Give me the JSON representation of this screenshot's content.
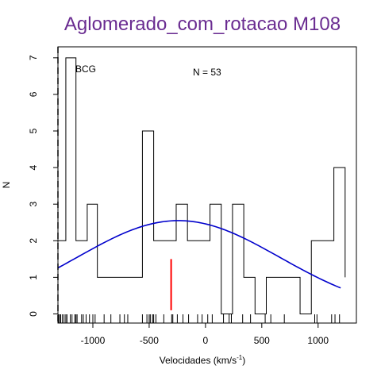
{
  "chart_data": {
    "type": "histogram",
    "title": "Aglomerado_com_rotacao M108",
    "xlabel": "Velocidades  (km/s",
    "xlabel_exponent": "-1",
    "xlabel_suffix": ")",
    "ylabel": "N",
    "xlim": [
      -1310,
      1340
    ],
    "ylim": [
      -0.25,
      7.3
    ],
    "x_ticks": [
      -1000,
      -500,
      0,
      500,
      1000
    ],
    "y_ticks": [
      0,
      1,
      2,
      3,
      4,
      5,
      6,
      7
    ],
    "annotation_n": "N =  53",
    "bcg_label": "BCG",
    "bcg_velocity": -1310,
    "mean_marker": {
      "x": -305,
      "height": 1.5,
      "color": "#ff0000"
    },
    "histogram": {
      "color": "#000000",
      "bins": [
        [
          -1310,
          -1240,
          2
        ],
        [
          -1240,
          -1150,
          7
        ],
        [
          -1150,
          -1050,
          2
        ],
        [
          -1050,
          -960,
          3
        ],
        [
          -960,
          -560,
          1
        ],
        [
          -560,
          -460,
          5
        ],
        [
          -460,
          -260,
          2
        ],
        [
          -260,
          -160,
          3
        ],
        [
          -160,
          40,
          2
        ],
        [
          40,
          140,
          3
        ],
        [
          140,
          240,
          0
        ],
        [
          240,
          340,
          3
        ],
        [
          340,
          440,
          1
        ],
        [
          440,
          540,
          0
        ],
        [
          540,
          840,
          1
        ],
        [
          840,
          940,
          0
        ],
        [
          940,
          1140,
          2
        ],
        [
          1140,
          1240,
          4
        ]
      ],
      "right_edge_level": 1
    },
    "gaussian": {
      "mean": -240,
      "sigma": 900,
      "amplitude": 2.55,
      "x_range": [
        -1310,
        1200
      ],
      "color": "#0000cc"
    },
    "rug": [
      -1305,
      -1295,
      -1285,
      -1270,
      -1255,
      -1240,
      -1230,
      -1200,
      -1185,
      -1160,
      -1150,
      -1140,
      -1100,
      -1085,
      -1060,
      -1030,
      -1000,
      -980,
      -900,
      -840,
      -760,
      -720,
      -690,
      -560,
      -520,
      -500,
      -490,
      -470,
      -460,
      -440,
      -370,
      -300,
      -290,
      -250,
      -200,
      -150,
      -70,
      -30,
      20,
      60,
      160,
      210,
      230,
      330,
      400,
      530,
      580,
      700,
      970,
      990,
      1120,
      1150,
      1190
    ],
    "title_color": "#6a2c91"
  }
}
